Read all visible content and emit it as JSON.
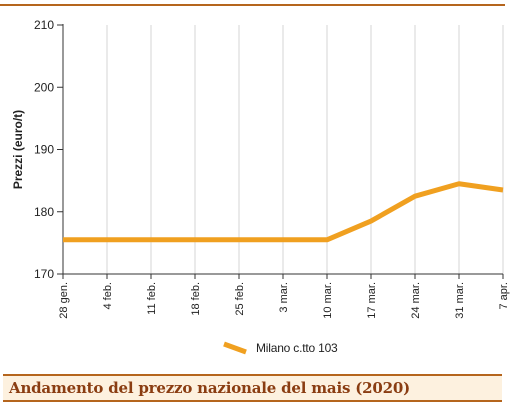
{
  "chart_data": {
    "type": "line",
    "ylabel": "Prezzi (euro/t)",
    "ylim": [
      170,
      210
    ],
    "yticks": [
      170,
      180,
      190,
      200,
      210
    ],
    "categories": [
      "28 gen.",
      "4 feb.",
      "11 feb.",
      "18 feb.",
      "25 feb.",
      "3 mar.",
      "10 mar.",
      "17 mar.",
      "24 mar.",
      "31 mar.",
      "7 apr."
    ],
    "series": [
      {
        "name": "Milano  c.tto 103",
        "color": "#f0a020",
        "values": [
          175.5,
          175.5,
          175.5,
          175.5,
          175.5,
          175.5,
          175.5,
          178.5,
          182.5,
          184.5,
          183.5
        ]
      }
    ],
    "grid": "vertical",
    "legend": "bottom-center"
  },
  "footer": {
    "title": "Andamento del prezzo nazionale del mais (2020)"
  }
}
